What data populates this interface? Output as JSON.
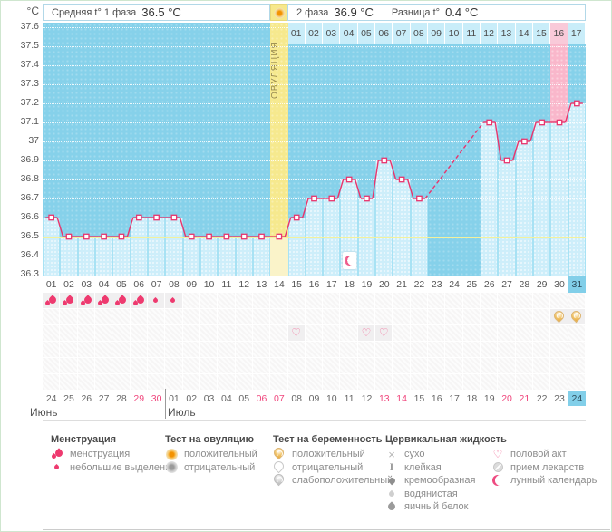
{
  "header": {
    "phase1_label": "Средняя t° 1 фаза",
    "phase1_value": "36.5 °C",
    "phase2_label": "2 фаза",
    "phase2_value": "36.9 °C",
    "diff_label": "Разница t°",
    "diff_value": "0.4 °C"
  },
  "axis": {
    "unit": "°C",
    "yticks": [
      "37.6",
      "37.5",
      "37.4",
      "37.3",
      "37.2",
      "37.1",
      "37",
      "36.9",
      "36.8",
      "36.7",
      "36.6",
      "36.5",
      "36.4",
      "36.3"
    ]
  },
  "chart_data": {
    "type": "line",
    "ylim": [
      36.3,
      37.6
    ],
    "ytick_step": 0.1,
    "days": [
      "01",
      "02",
      "03",
      "04",
      "05",
      "06",
      "07",
      "08",
      "09",
      "10",
      "11",
      "12",
      "13",
      "14",
      "15",
      "16",
      "17",
      "18",
      "19",
      "20",
      "21",
      "22",
      "23",
      "24",
      "25",
      "26",
      "27",
      "28",
      "29",
      "30",
      "31"
    ],
    "temps": [
      36.6,
      36.5,
      36.5,
      36.5,
      36.5,
      36.6,
      36.6,
      36.6,
      36.5,
      36.5,
      36.5,
      36.5,
      36.5,
      36.5,
      36.6,
      36.7,
      36.7,
      36.8,
      36.7,
      36.9,
      36.8,
      36.7,
      null,
      null,
      null,
      37.1,
      36.9,
      37.0,
      37.1,
      37.1,
      37.2
    ],
    "coverline": 36.5,
    "ovulation_day": 14,
    "ovulation_label": "ОВУЛЯЦИЯ",
    "dashed_gap_days": [
      22,
      26
    ],
    "pink_column_day": 30,
    "today_day": 31,
    "phase2_labels": [
      "01",
      "02",
      "03",
      "04",
      "05",
      "06",
      "07",
      "08",
      "09",
      "10",
      "11",
      "12",
      "13",
      "14",
      "15",
      "16",
      "17"
    ],
    "phase2_pink_label": "16",
    "line_color": "#e8356d",
    "coverline_color": "#f3f19c",
    "plot_bg": "#86d1ea",
    "fill_bg": "#cdeefa",
    "ovulation_col_color": "#f6e98e",
    "pink_col_color": "#f9b7cb"
  },
  "markers": {
    "menstruation_heavy_days": [
      1,
      2,
      3,
      4,
      5,
      6
    ],
    "menstruation_light_days": [
      7,
      8
    ],
    "pregnancy_positive_days": [
      30,
      31
    ],
    "intercourse_days": [
      15,
      19,
      20
    ],
    "lunar_calendar_days": [
      18
    ]
  },
  "calendar": {
    "months": [
      {
        "label": "Июнь",
        "days": [
          "24",
          "25",
          "26",
          "27",
          "28",
          "29",
          "30"
        ],
        "weekends": [
          "29",
          "30"
        ]
      },
      {
        "label": "Июль",
        "days": [
          "01",
          "02",
          "03",
          "04",
          "05",
          "06",
          "07",
          "08",
          "09",
          "10",
          "11",
          "12",
          "13",
          "14",
          "15",
          "16",
          "17",
          "18",
          "19",
          "20",
          "21",
          "22",
          "23",
          "24"
        ],
        "weekends": [
          "06",
          "07",
          "13",
          "14",
          "20",
          "21"
        ]
      }
    ],
    "today": {
      "month": "Июль",
      "day": "24"
    }
  },
  "legend": {
    "columns": [
      {
        "title": "Менструация",
        "items": [
          {
            "icon": "drops-heavy",
            "label": "менструация"
          },
          {
            "icon": "drop-light",
            "label": "небольшие выделения"
          }
        ]
      },
      {
        "title": "Тест на овуляцию",
        "items": [
          {
            "icon": "ovu-pos",
            "label": "положительный"
          },
          {
            "icon": "ovu-neg",
            "label": "отрицательный"
          }
        ]
      },
      {
        "title": "Тест на беременность",
        "items": [
          {
            "icon": "preg-pos",
            "label": "положительный"
          },
          {
            "icon": "preg-neg",
            "label": "отрицательный"
          },
          {
            "icon": "preg-weak",
            "label": "слабоположительный"
          }
        ]
      },
      {
        "title": "Цервикальная жидкость",
        "items": [
          {
            "icon": "cf-dry",
            "label": "сухо"
          },
          {
            "icon": "cf-sticky",
            "label": "клейкая"
          },
          {
            "icon": "cf-creamy",
            "label": "кремообразная"
          },
          {
            "icon": "cf-watery",
            "label": "водянистая"
          },
          {
            "icon": "cf-eggwhite",
            "label": "яичный белок"
          }
        ]
      },
      {
        "title": "",
        "items": [
          {
            "icon": "heart",
            "label": "половой акт"
          },
          {
            "icon": "pills",
            "label": "прием лекарств"
          },
          {
            "icon": "moon",
            "label": "лунный календарь"
          }
        ]
      }
    ]
  }
}
